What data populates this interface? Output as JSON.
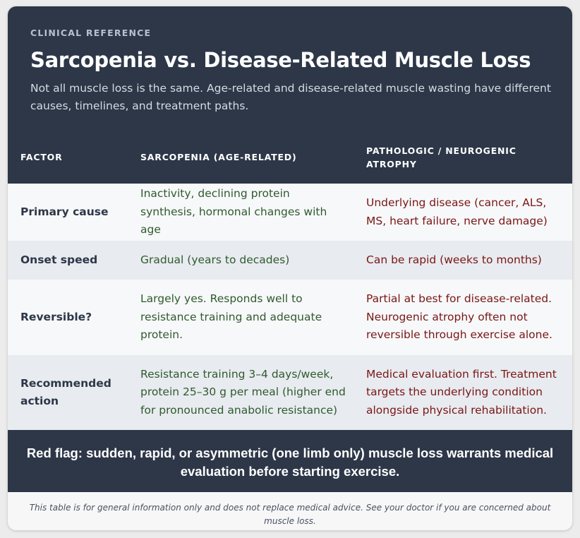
{
  "header": {
    "eyebrow": "CLINICAL REFERENCE",
    "title": "Sarcopenia vs. Disease-Related Muscle Loss",
    "subtitle": "Not all muscle loss is the same. Age-related and disease-related muscle wasting have different causes, timelines, and treatment paths."
  },
  "table": {
    "columns": [
      "FACTOR",
      "SARCOPENIA (AGE-RELATED)",
      "PATHOLOGIC / NEUROGENIC ATROPHY"
    ],
    "rows": [
      {
        "factor": "Primary cause",
        "sarcopenia": "Inactivity, declining protein synthesis, hormonal changes with age",
        "pathologic": "Underlying disease (cancer, ALS, MS, heart failure, nerve damage)"
      },
      {
        "factor": "Onset speed",
        "sarcopenia": "Gradual (years to decades)",
        "pathologic": "Can be rapid (weeks to months)"
      },
      {
        "factor": "Reversible?",
        "sarcopenia": "Largely yes. Responds well to resistance training and adequate protein.",
        "pathologic": "Partial at best for disease-related. Neurogenic atrophy often not reversible through exercise alone."
      },
      {
        "factor": "Recommended action",
        "sarcopenia": "Resistance training 3–4 days/week, protein 25–30 g per meal (higher end for pronounced anabolic resistance)",
        "pathologic": "Medical evaluation first. Treatment targets the underlying condition alongside physical rehabilitation."
      }
    ]
  },
  "red_flag": "Red flag: sudden, rapid, or asymmetric (one limb only) muscle loss warrants medical evaluation before starting exercise.",
  "disclaimer": "This table is for general information only and does not replace medical advice. See your doctor if you are concerned about muscle loss.",
  "colors": {
    "header_bg": "#2d3748",
    "sarcopenia_text": "#2f5a2f",
    "pathologic_text": "#7a1616",
    "row_alt_bg": "#e8ebef"
  }
}
